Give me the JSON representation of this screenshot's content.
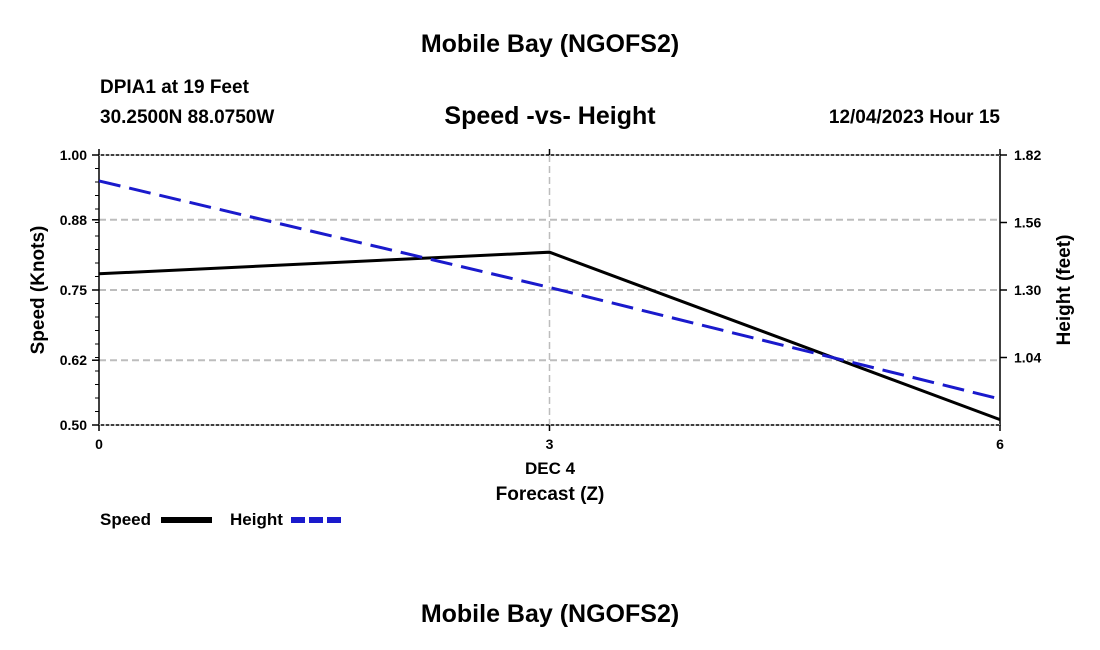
{
  "page": {
    "top_title": "Mobile Bay (NGOFS2)",
    "bottom_title": "Mobile Bay (NGOFS2)",
    "station": "DPIA1 at 19 Feet",
    "coords": "30.2500N  88.0750W",
    "datetime": "12/04/2023 Hour 15"
  },
  "legend": {
    "speed_label": "Speed",
    "height_label": "Height"
  },
  "colors": {
    "speed": "#000000",
    "height": "#1a1acc",
    "grid": "#bdbdbd"
  },
  "chart_data": {
    "type": "line",
    "title": "Speed -vs- Height",
    "xlabel": "Forecast (Z)",
    "xsublabel": "DEC 4",
    "ylabel": "Speed (Knots)",
    "y2label": "Height (feet)",
    "xlim": [
      0,
      6
    ],
    "ylim": [
      0.5,
      1.0
    ],
    "y2lim": [
      0.78,
      1.82
    ],
    "x_ticks": [
      "0",
      "3",
      "6"
    ],
    "y_ticks": [
      "1.00",
      "0.88",
      "0.75",
      "0.62",
      "0.50"
    ],
    "y2_ticks": [
      "1.82",
      "1.56",
      "1.30",
      "1.04"
    ],
    "series": [
      {
        "name": "Speed",
        "axis": "left",
        "style": "solid",
        "x": [
          0,
          3,
          6
        ],
        "values": [
          0.78,
          0.82,
          0.51
        ]
      },
      {
        "name": "Height",
        "axis": "right",
        "style": "dashed",
        "x": [
          0,
          3,
          6
        ],
        "values": [
          1.72,
          1.31,
          0.88
        ]
      }
    ]
  }
}
